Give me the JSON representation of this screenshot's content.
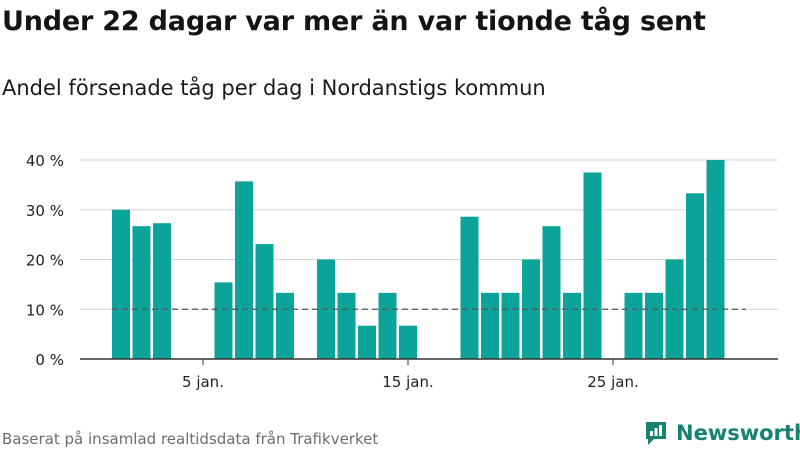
{
  "title": "Under 22 dagar var mer än var tionde tåg sent",
  "subtitle": "Andel försenade tåg per dag i Nordanstigs kommun",
  "footer": "Baserat på insamlad realtidsdata från Trafikverket",
  "brand": "Newsworthy",
  "colors": {
    "bar": "#0ba39a",
    "axis": "#333333",
    "grid": "#d6d6d6",
    "reference_line": "#555555",
    "brand": "#15836f"
  },
  "chart_data": {
    "type": "bar",
    "x": [
      1,
      2,
      3,
      4,
      5,
      6,
      7,
      8,
      9,
      10,
      11,
      12,
      13,
      14,
      15,
      16,
      17,
      18,
      19,
      20,
      21,
      22,
      23,
      24,
      25,
      26,
      27,
      28,
      29,
      30,
      31,
      32
    ],
    "values": [
      30,
      26.7,
      27.3,
      0,
      0,
      15.4,
      35.7,
      23.1,
      13.3,
      0,
      20,
      13.3,
      6.7,
      13.3,
      6.7,
      0,
      0,
      28.6,
      13.3,
      13.3,
      20,
      26.7,
      13.3,
      37.5,
      0,
      13.3,
      13.3,
      20,
      33.3,
      40,
      0,
      0
    ],
    "ylim": [
      0,
      40
    ],
    "yticks": [
      0,
      10,
      20,
      30,
      40
    ],
    "ytick_labels": [
      "0 %",
      "10 %",
      "20 %",
      "30 %",
      "40 %"
    ],
    "xticks": [
      5,
      15,
      25
    ],
    "xtick_labels": [
      "5 jan.",
      "15 jan.",
      "25 jan."
    ],
    "reference_line": 10,
    "grid": true
  }
}
